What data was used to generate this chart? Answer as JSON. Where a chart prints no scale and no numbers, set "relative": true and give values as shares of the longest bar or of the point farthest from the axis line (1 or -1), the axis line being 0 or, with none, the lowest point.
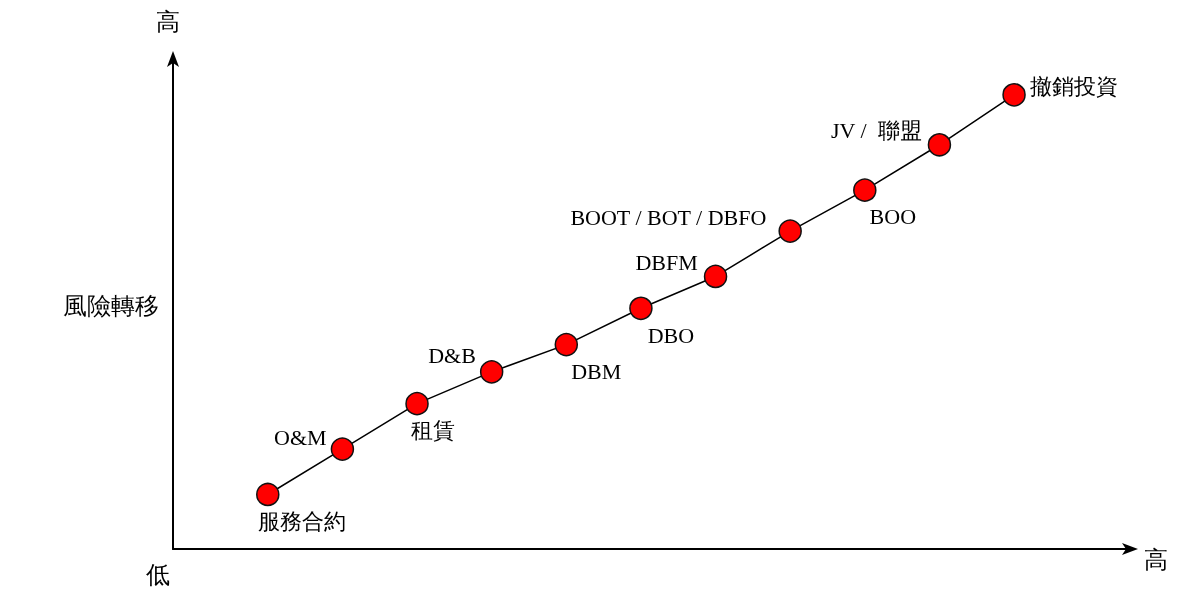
{
  "chart_data": {
    "type": "line",
    "ylabel": "風險轉移",
    "relative": true,
    "categories": [
      null,
      null,
      null,
      null,
      null,
      null,
      null,
      null,
      null,
      null,
      null
    ],
    "series": [
      {
        "color": "#000000",
        "colors": [
          "#ff0000",
          "#ff0000",
          "#ff0000",
          "#ff0000",
          "#ff0000",
          "#ff0000",
          "#ff0000",
          "#ff0000",
          "#ff0000",
          "#ff0000",
          "#ff0000"
        ],
        "values": [
          0.12,
          0.22,
          0.32,
          0.39,
          0.45,
          0.53,
          0.6,
          0.7,
          0.79,
          0.89,
          1
        ]
      }
    ],
    "marker": "circle",
    "line_style": "solid",
    "annotations": [
      "服務合約",
      "O&M",
      "租賃",
      "D&B",
      "DBM",
      "DBO",
      "DBFM",
      "BOOT / BOT / DBFO",
      "BOO",
      "JV /  聯盟",
      "撤銷投資",
      "高",
      "低",
      "高"
    ]
  }
}
